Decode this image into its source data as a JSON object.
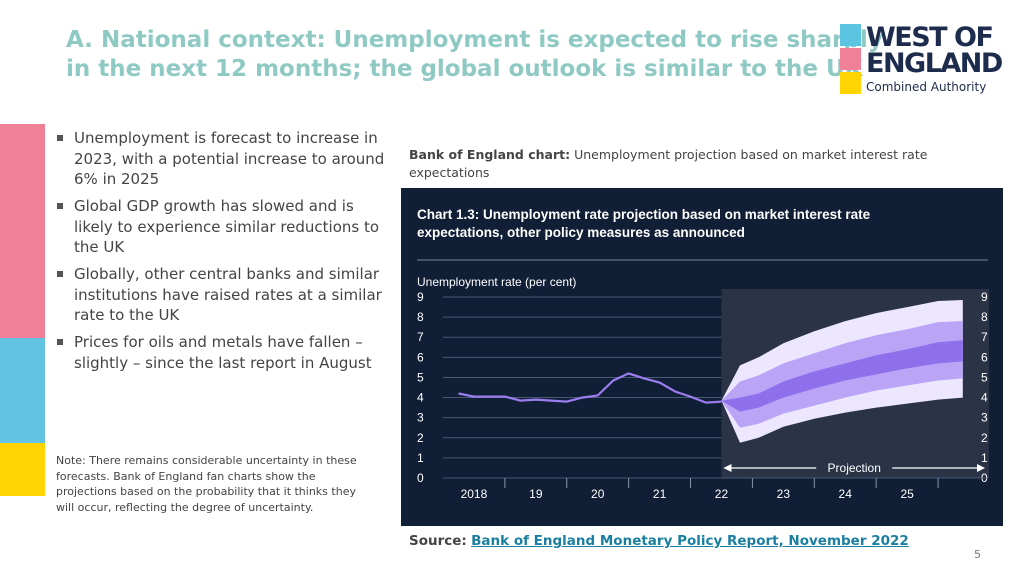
{
  "title": {
    "line1": "A. National context: Unemployment is expected to rise sharply",
    "line2": "in the next 12 months; the global outlook is similar to the UK"
  },
  "logo": {
    "line1": "WEST OF",
    "line2": "ENGLAND",
    "line3": "Combined Authority",
    "colors": [
      "#5bc4e0",
      "#f08096",
      "#ffd400"
    ]
  },
  "side_bar_colors": [
    "#f08096",
    "#62c3e3",
    "#ffd400"
  ],
  "bullets": [
    "Unemployment is forecast to increase in 2023, with a potential increase to around 6% in 2025",
    "Global GDP growth has slowed and is likely to experience similar reductions to the UK",
    "Globally, other central banks and similar institutions have raised rates at a similar rate to the UK",
    "Prices for oils and metals have fallen – slightly – since the last report in August"
  ],
  "note": "Note: There remains considerable uncertainty in these forecasts. Bank of England fan charts show the projections based on the probability that it thinks they will occur, reflecting the degree of uncertainty.",
  "chart_caption": {
    "bold": "Bank of England chart:",
    "text": " Unemployment projection based on market interest rate expectations"
  },
  "source": {
    "label": "Source:",
    "link": "Bank of England Monetary Policy Report, November 2022"
  },
  "page_number": "5",
  "chart_data": {
    "type": "area",
    "title": "Chart 1.3: Unemployment rate projection based on market interest rate expectations, other policy measures as announced",
    "ylabel": "Unemployment rate (per cent)",
    "ylim": [
      0,
      9
    ],
    "yticks": [
      0,
      1,
      2,
      3,
      4,
      5,
      6,
      7,
      8,
      9
    ],
    "xlim": [
      2017.5,
      2026.0
    ],
    "xticks": [
      {
        "value": 2018,
        "label": "2018"
      },
      {
        "value": 2019,
        "label": "19"
      },
      {
        "value": 2020,
        "label": "20"
      },
      {
        "value": 2021,
        "label": "21"
      },
      {
        "value": 2022,
        "label": "22"
      },
      {
        "value": 2023,
        "label": "23"
      },
      {
        "value": 2024,
        "label": "24"
      },
      {
        "value": 2025,
        "label": "25"
      }
    ],
    "projection_label": "Projection",
    "projection_start": 2022.0,
    "colors": {
      "background": "#101e36",
      "line": "#9b7df0",
      "band_outer": "#ece6ff",
      "band_mid": "#b9a4f6",
      "band_inner": "#8f70ec",
      "projection_shade": "#2a3446",
      "text": "#ffffff",
      "grid": "#4a5a72"
    },
    "series": [
      {
        "values": [
          {
            "x": 2017.75,
            "y": 4.2
          },
          {
            "x": 2018.0,
            "y": 4.05
          },
          {
            "x": 2018.25,
            "y": 4.05
          },
          {
            "x": 2018.5,
            "y": 4.05
          },
          {
            "x": 2018.75,
            "y": 3.85
          },
          {
            "x": 2019.0,
            "y": 3.9
          },
          {
            "x": 2019.25,
            "y": 3.85
          },
          {
            "x": 2019.5,
            "y": 3.8
          },
          {
            "x": 2019.75,
            "y": 4.0
          },
          {
            "x": 2020.0,
            "y": 4.1
          },
          {
            "x": 2020.25,
            "y": 4.85
          },
          {
            "x": 2020.5,
            "y": 5.2
          },
          {
            "x": 2020.75,
            "y": 4.95
          },
          {
            "x": 2021.0,
            "y": 4.75
          },
          {
            "x": 2021.25,
            "y": 4.3
          },
          {
            "x": 2021.5,
            "y": 4.05
          },
          {
            "x": 2021.75,
            "y": 3.75
          },
          {
            "x": 2022.0,
            "y": 3.8
          }
        ]
      }
    ],
    "fan_bands": {
      "x": [
        2021.75,
        2022.0,
        2022.3,
        2022.6,
        2023.0,
        2023.5,
        2024.0,
        2024.5,
        2025.0,
        2025.5,
        2025.9
      ],
      "outer_high": [
        3.75,
        3.85,
        5.6,
        6.0,
        6.7,
        7.3,
        7.8,
        8.2,
        8.5,
        8.8,
        8.85
      ],
      "mid_high": [
        3.75,
        3.85,
        4.8,
        5.1,
        5.7,
        6.2,
        6.7,
        7.1,
        7.4,
        7.75,
        7.8
      ],
      "inner_high": [
        3.75,
        3.85,
        4.0,
        4.2,
        4.8,
        5.3,
        5.7,
        6.1,
        6.4,
        6.75,
        6.85
      ],
      "inner_low": [
        3.75,
        3.85,
        3.3,
        3.5,
        4.0,
        4.45,
        4.85,
        5.15,
        5.45,
        5.7,
        5.8
      ],
      "mid_low": [
        3.75,
        3.85,
        2.5,
        2.7,
        3.2,
        3.6,
        4.0,
        4.35,
        4.6,
        4.85,
        4.95
      ],
      "outer_low": [
        3.75,
        3.85,
        1.75,
        2.0,
        2.55,
        2.95,
        3.25,
        3.5,
        3.7,
        3.9,
        4.0
      ]
    }
  }
}
